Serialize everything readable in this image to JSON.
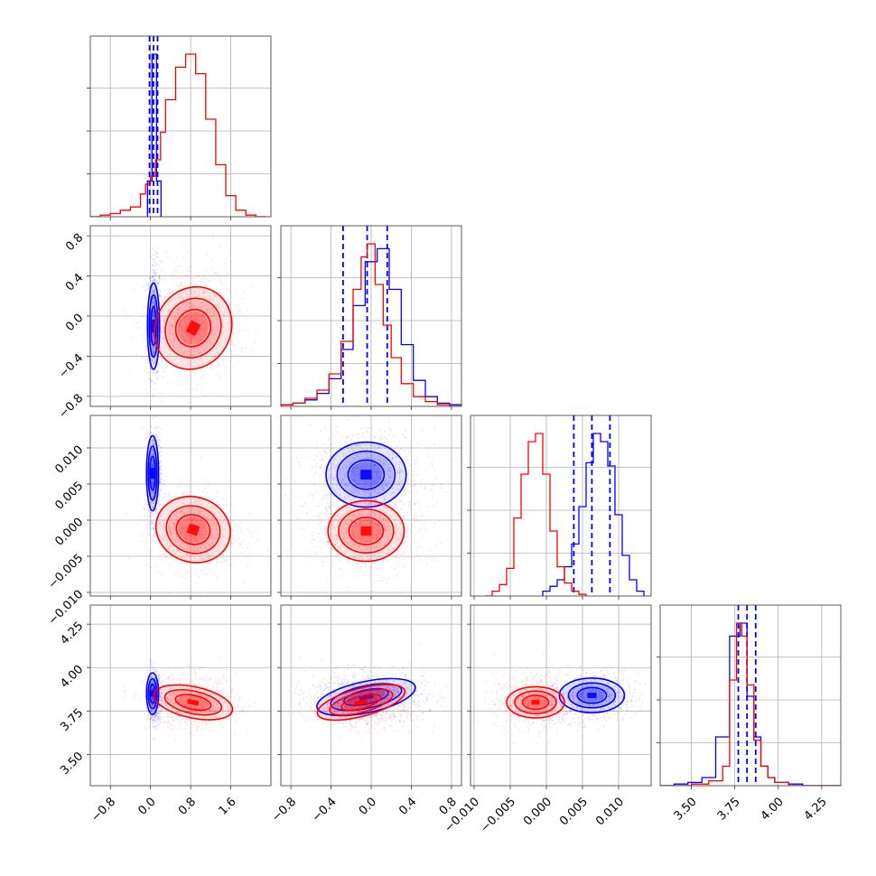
{
  "chart_data": {
    "type": "corner",
    "title": "",
    "grid": true,
    "colors": {
      "series_a": "#0000ff",
      "series_b": "#ff0000"
    },
    "parameters": [
      {
        "xlim": [
          -1.2,
          2.4
        ],
        "ylim": [
          -1.0,
          0.9
        ],
        "ticks": [
          -0.8,
          0.0,
          0.8,
          1.6
        ],
        "tick_labels": [
          "−0.8",
          "0.0",
          "0.8",
          "1.6"
        ]
      },
      {
        "xlim": [
          -0.9,
          0.9
        ],
        "ylim": [
          -0.9,
          0.9
        ],
        "ticks": [
          -0.8,
          -0.4,
          0.0,
          0.4,
          0.8
        ],
        "tick_labels": [
          "−0.8",
          "−0.4",
          "0.0",
          "0.4",
          "0.8"
        ]
      },
      {
        "xlim": [
          -0.0105,
          0.0145
        ],
        "ylim": [
          -0.0105,
          0.0145
        ],
        "ticks": [
          -0.01,
          -0.005,
          0.0,
          0.005,
          0.01
        ],
        "tick_labels": [
          "−0.010",
          "−0.005",
          "0.000",
          "0.005",
          "0.010"
        ]
      },
      {
        "xlim": [
          3.32,
          4.36
        ],
        "ylim": [
          3.32,
          4.36
        ],
        "ticks": [
          3.5,
          3.75,
          4.0,
          4.25
        ],
        "tick_labels": [
          "3.50",
          "3.75",
          "4.00",
          "4.25"
        ]
      }
    ],
    "series": [
      {
        "name": "",
        "color": "#0000ff",
        "quantile_lines": [
          [
            -0.02,
            0.06,
            0.14
          ],
          [
            -0.28,
            -0.04,
            0.16
          ],
          [
            0.0038,
            0.0063,
            0.0088
          ],
          [
            3.77,
            3.82,
            3.87
          ]
        ],
        "mean": [
          0.08,
          -0.04,
          0.0063,
          3.83
        ],
        "std": [
          0.05,
          0.22,
          0.0024,
          0.055
        ],
        "histograms": [
          {
            "edges": [
              -0.06,
              0.03,
              0.12,
              0.21
            ],
            "counts": [
              0.22,
              1.0,
              0.22
            ]
          },
          {
            "edges": [
              -0.9,
              -0.78,
              -0.66,
              -0.54,
              -0.42,
              -0.3,
              -0.18,
              -0.06,
              0.06,
              0.18,
              0.3,
              0.42,
              0.54,
              0.66,
              0.78,
              0.9
            ],
            "counts": [
              0.01,
              0.02,
              0.04,
              0.08,
              0.17,
              0.35,
              0.62,
              0.89,
              0.97,
              0.72,
              0.38,
              0.16,
              0.06,
              0.02,
              0.01
            ]
          },
          {
            "edges": [
              -0.0005,
              0.0005,
              0.0015,
              0.0025,
              0.0035,
              0.0045,
              0.0055,
              0.0065,
              0.0075,
              0.0085,
              0.0095,
              0.0105,
              0.0115,
              0.0125,
              0.0135
            ],
            "counts": [
              0.03,
              0.06,
              0.1,
              0.18,
              0.32,
              0.55,
              0.82,
              1.0,
              0.95,
              0.8,
              0.5,
              0.25,
              0.1,
              0.03
            ]
          },
          {
            "edges": [
              3.32,
              3.4,
              3.48,
              3.56,
              3.64,
              3.72,
              3.78,
              3.82,
              3.86,
              3.9,
              3.94,
              3.98,
              4.06,
              4.14,
              4.36
            ],
            "counts": [
              0.0,
              0.01,
              0.02,
              0.05,
              0.3,
              0.92,
              1.0,
              0.55,
              0.3,
              0.12,
              0.05,
              0.02,
              0.01,
              0.0
            ]
          }
        ],
        "pairs": [
          {
            "x": 0,
            "y": 1,
            "center": [
              0.06,
              -0.1
            ],
            "half_axes": [
              0.12,
              0.43
            ],
            "tilt_deg": 0
          },
          {
            "x": 0,
            "y": 2,
            "center": [
              0.04,
              0.0065
            ],
            "half_axes": [
              0.12,
              0.0052
            ],
            "tilt_deg": 0
          },
          {
            "x": 0,
            "y": 3,
            "center": [
              0.04,
              3.85
            ],
            "half_axes": [
              0.12,
              0.12
            ],
            "tilt_deg": 0
          },
          {
            "x": 1,
            "y": 2,
            "center": [
              -0.05,
              0.0063
            ],
            "half_axes": [
              0.4,
              0.0045
            ],
            "tilt_deg": 0
          },
          {
            "x": 1,
            "y": 3,
            "center": [
              -0.05,
              3.83
            ],
            "half_axes": [
              0.5,
              0.09
            ],
            "tilt_deg": 12
          },
          {
            "x": 2,
            "y": 3,
            "center": [
              0.0063,
              3.84
            ],
            "half_axes": [
              0.0045,
              0.1
            ],
            "tilt_deg": 0
          }
        ]
      },
      {
        "name": "",
        "color": "#ff0000",
        "mean": [
          0.85,
          -0.05,
          -0.0015,
          3.8
        ],
        "std": [
          0.35,
          0.22,
          0.0022,
          0.06
        ],
        "histograms": [
          {
            "edges": [
              -1.2,
              -1.0,
              -0.8,
              -0.6,
              -0.4,
              -0.2,
              -0.1,
              0.0,
              0.1,
              0.2,
              0.3,
              0.5,
              0.7,
              0.9,
              1.1,
              1.3,
              1.5,
              1.7,
              1.9,
              2.1,
              2.3
            ],
            "counts": [
              0.0,
              0.01,
              0.02,
              0.04,
              0.06,
              0.14,
              0.2,
              0.25,
              0.35,
              0.52,
              0.72,
              0.92,
              1.0,
              0.88,
              0.6,
              0.32,
              0.13,
              0.04,
              0.01,
              0.0
            ]
          },
          {
            "edges": [
              -0.9,
              -0.78,
              -0.66,
              -0.54,
              -0.42,
              -0.3,
              -0.18,
              -0.1,
              -0.04,
              0.04,
              0.12,
              0.2,
              0.3,
              0.42,
              0.54,
              0.66,
              0.78,
              0.9
            ],
            "counts": [
              0.01,
              0.02,
              0.05,
              0.1,
              0.2,
              0.4,
              0.72,
              0.92,
              1.0,
              0.75,
              0.5,
              0.3,
              0.14,
              0.06,
              0.03,
              0.01,
              0.0
            ]
          },
          {
            "edges": [
              -0.0085,
              -0.0075,
              -0.0065,
              -0.0055,
              -0.0045,
              -0.0035,
              -0.0025,
              -0.0015,
              -0.0005,
              0.0005,
              0.0015,
              0.0025,
              0.0035,
              0.0045,
              0.0055
            ],
            "counts": [
              0.0,
              0.03,
              0.07,
              0.17,
              0.48,
              0.75,
              0.95,
              1.0,
              0.75,
              0.4,
              0.18,
              0.08,
              0.03,
              0.01
            ]
          },
          {
            "edges": [
              3.32,
              3.5,
              3.6,
              3.68,
              3.72,
              3.76,
              3.79,
              3.82,
              3.86,
              3.9,
              3.94,
              3.98,
              4.06,
              4.36
            ],
            "counts": [
              0.0,
              0.01,
              0.03,
              0.12,
              0.65,
              1.0,
              0.92,
              0.62,
              0.28,
              0.12,
              0.05,
              0.02,
              0.0
            ]
          }
        ],
        "pairs": [
          {
            "x": 0,
            "y": 1,
            "center": [
              0.85,
              -0.12
            ],
            "half_axes": [
              0.75,
              0.42
            ],
            "tilt_deg": -28
          },
          {
            "x": 0,
            "y": 2,
            "center": [
              0.85,
              -0.0013
            ],
            "half_axes": [
              0.75,
              0.0045
            ],
            "tilt_deg": -18
          },
          {
            "x": 0,
            "y": 3,
            "center": [
              0.85,
              3.8
            ],
            "half_axes": [
              0.8,
              0.09
            ],
            "tilt_deg": -12
          },
          {
            "x": 1,
            "y": 2,
            "center": [
              -0.05,
              -0.0015
            ],
            "half_axes": [
              0.38,
              0.0042
            ],
            "tilt_deg": 0
          },
          {
            "x": 1,
            "y": 3,
            "center": [
              -0.1,
              3.8
            ],
            "half_axes": [
              0.45,
              0.08
            ],
            "tilt_deg": 15
          },
          {
            "x": 2,
            "y": 3,
            "center": [
              -0.0015,
              3.8
            ],
            "half_axes": [
              0.004,
              0.09
            ],
            "tilt_deg": 0
          }
        ]
      }
    ]
  }
}
